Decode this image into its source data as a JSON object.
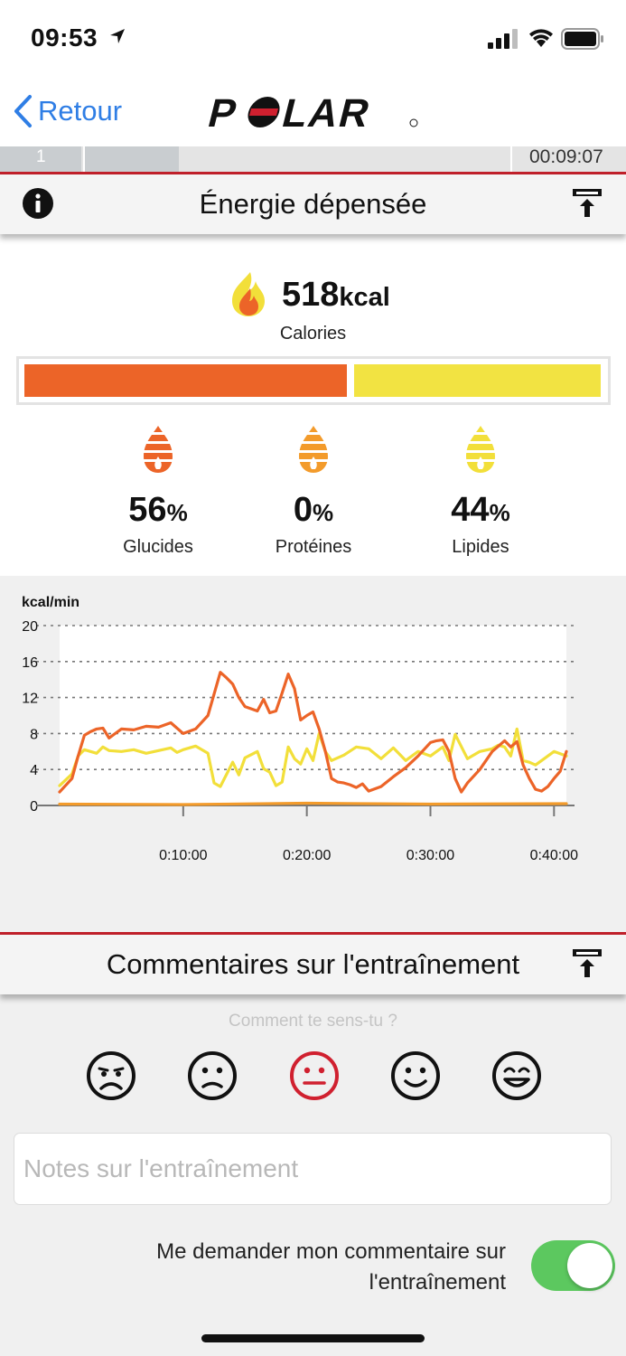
{
  "status_bar": {
    "time": "09:53"
  },
  "nav": {
    "back_label": "Retour",
    "brand": "POLAR"
  },
  "scrubber": {
    "segment_label": "1",
    "duration": "00:09:07"
  },
  "energy_section": {
    "title": "Énergie dépensée",
    "total_value": "518",
    "total_unit": "kcal",
    "total_label": "Calories",
    "carbs_fraction": 0.56,
    "macros": [
      {
        "value": "56",
        "unit": "%",
        "label": "Glucides",
        "color": "#ec6428"
      },
      {
        "value": "0",
        "unit": "%",
        "label": "Protéines",
        "color": "#f39b2b"
      },
      {
        "value": "44",
        "unit": "%",
        "label": "Lipides",
        "color": "#f2df3a"
      }
    ]
  },
  "chart_data": {
    "type": "line",
    "ylabel": "kcal/min",
    "ylim": [
      0,
      20
    ],
    "yticks": [
      "0",
      "4",
      "8",
      "12",
      "16",
      "20"
    ],
    "xlim": [
      0,
      41
    ],
    "xtick_minutes": [
      10,
      20,
      30,
      40
    ],
    "xticks": [
      "0:10:00",
      "0:20:00",
      "0:30:00",
      "0:40:00"
    ],
    "grid": true,
    "series": [
      {
        "color": "#ec6428",
        "x": [
          0,
          1,
          1.5,
          2,
          2.5,
          3,
          3.5,
          4,
          5,
          6,
          7,
          8,
          9,
          10,
          11,
          12,
          13,
          13.5,
          14,
          14.5,
          15,
          16,
          16.5,
          17,
          17.5,
          18,
          18.5,
          19,
          19.5,
          20,
          20.5,
          21,
          21.5,
          22,
          22.5,
          23,
          23.5,
          24,
          24.5,
          25,
          26,
          27,
          28,
          29,
          30,
          30.5,
          31,
          31.5,
          32,
          32.5,
          33,
          34,
          35,
          36,
          36.5,
          37,
          37.5,
          38,
          38.5,
          39,
          39.5,
          40,
          40.5,
          41
        ],
        "y": [
          1.5,
          3,
          5.5,
          7.8,
          8.2,
          8.5,
          8.6,
          7.5,
          8.5,
          8.4,
          8.8,
          8.7,
          9.2,
          8,
          8.5,
          10,
          14.8,
          14.2,
          13.5,
          12,
          11,
          10.5,
          11.8,
          10.3,
          10.5,
          12.5,
          14.6,
          13,
          9.5,
          10,
          10.4,
          8.5,
          6,
          3,
          2.6,
          2.5,
          2.3,
          2,
          2.4,
          1.6,
          2.1,
          3.2,
          4.2,
          5.5,
          7,
          7.2,
          7.3,
          6,
          3,
          1.5,
          2.5,
          4,
          6,
          7.2,
          6.5,
          7.1,
          4.5,
          3,
          1.8,
          1.6,
          2.1,
          3,
          3.8,
          6
        ]
      },
      {
        "color": "#f2df3a",
        "x": [
          0,
          1,
          1.5,
          2,
          3,
          3.5,
          4,
          5,
          6,
          7,
          8,
          9,
          9.5,
          10,
          11,
          12,
          12.5,
          13,
          14,
          14.5,
          15,
          16,
          16.5,
          17,
          17.5,
          18,
          18.5,
          19,
          19.5,
          20,
          20.5,
          21,
          21.5,
          22,
          23,
          24,
          25,
          26,
          27,
          28,
          29,
          30,
          30.5,
          31,
          31.5,
          32,
          33,
          34,
          35,
          35.5,
          36,
          36.5,
          37,
          37.5,
          38,
          38.5,
          39,
          40,
          41
        ],
        "y": [
          2.2,
          3.5,
          5.5,
          6.2,
          5.8,
          6.5,
          6.1,
          6,
          6.2,
          5.8,
          6.1,
          6.4,
          5.9,
          6.2,
          6.6,
          5.8,
          2.5,
          2.1,
          4.8,
          3.4,
          5.3,
          6,
          4.1,
          3.7,
          2.2,
          2.6,
          6.5,
          5.2,
          4.6,
          6.3,
          5,
          8,
          6,
          5,
          5.6,
          6.5,
          6.3,
          5.2,
          6.4,
          5,
          6,
          5.5,
          6,
          6.5,
          5,
          7.9,
          5.2,
          6,
          6.3,
          6.7,
          6.5,
          5.5,
          8.5,
          5,
          4.8,
          4.5,
          5,
          6,
          5.5
        ]
      },
      {
        "color": "#f39b2b",
        "x": [
          0,
          10,
          20,
          30,
          41
        ],
        "y": [
          0.15,
          0.1,
          0.25,
          0.15,
          0.2
        ]
      }
    ]
  },
  "comments_section": {
    "title": "Commentaires sur l'entraînement",
    "prompt": "Comment te sens-tu ?",
    "faces": [
      "very-sad",
      "sad",
      "neutral",
      "happy",
      "very-happy"
    ],
    "selected_face": "neutral",
    "selected_color": "#d0202f",
    "notes_placeholder": "Notes sur l'entraînement",
    "ask_line1": "Me demander mon commentaire sur",
    "ask_line2": "l'entraînement",
    "toggle_on": true
  }
}
